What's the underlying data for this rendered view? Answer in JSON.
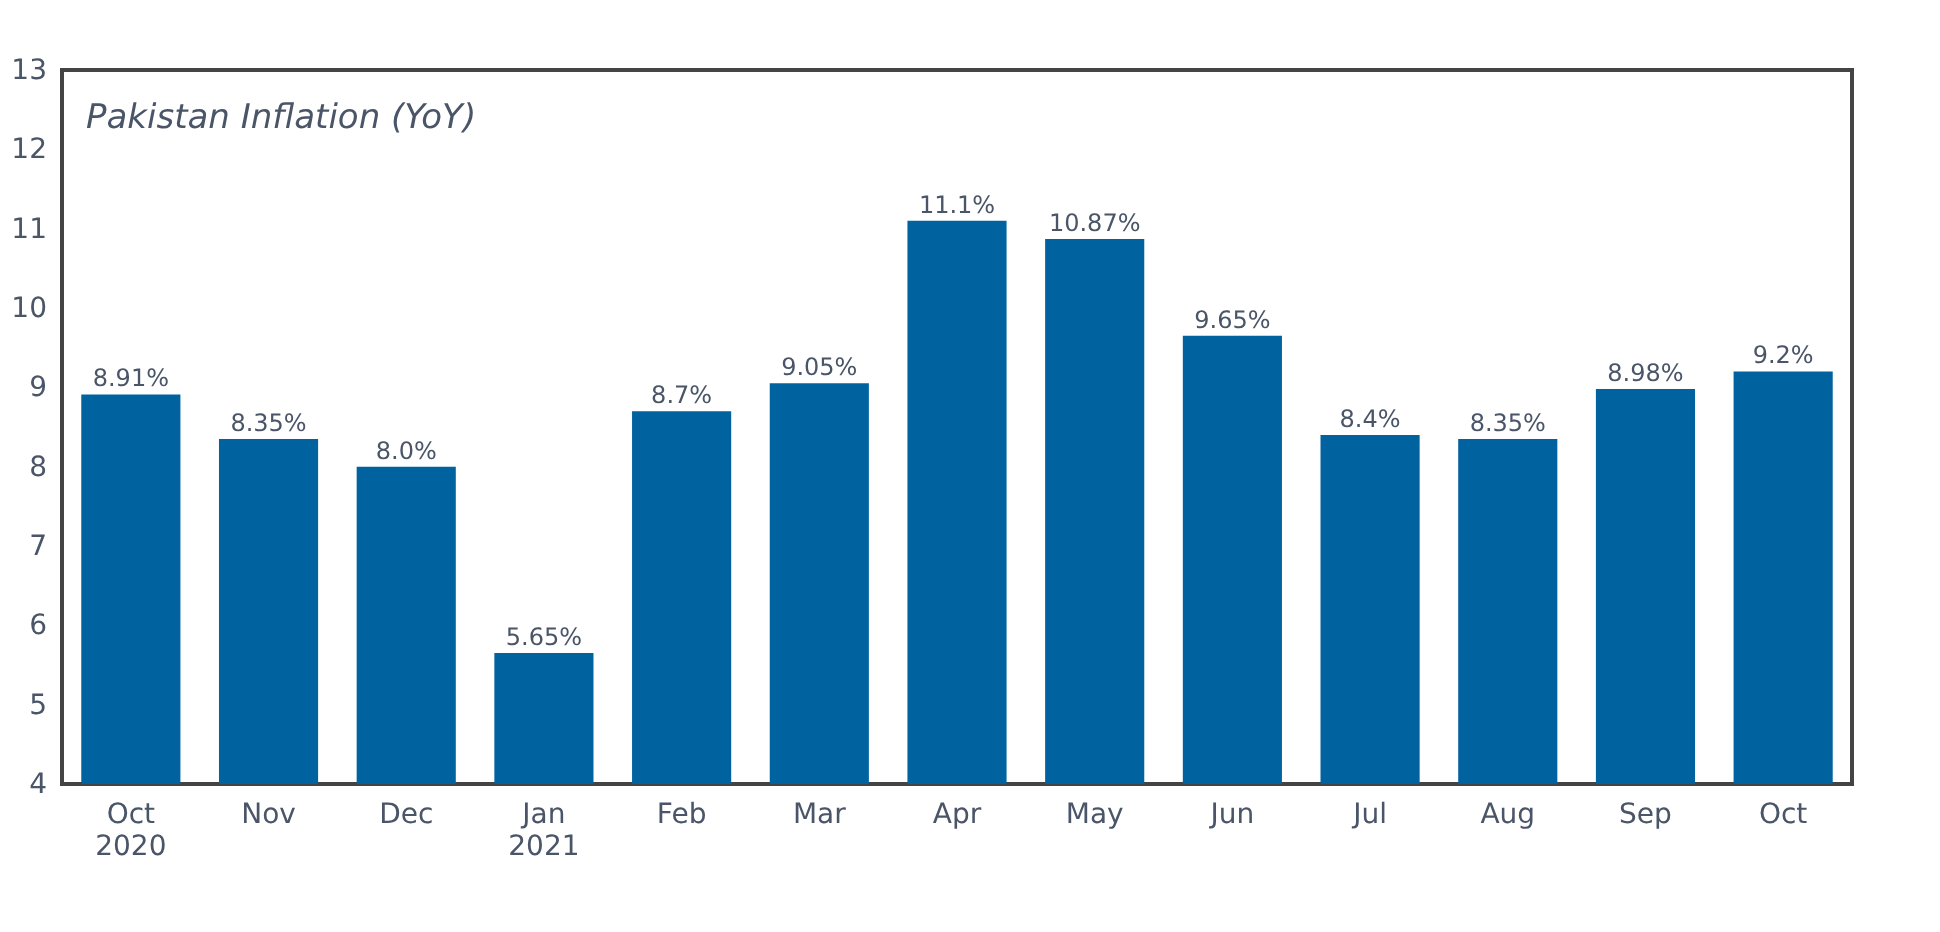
{
  "chart_data": {
    "type": "bar",
    "title": "Pakistan Inflation (YoY)",
    "categories": [
      "Oct 2020",
      "Nov",
      "Dec",
      "Jan 2021",
      "Feb",
      "Mar",
      "Apr",
      "May",
      "Jun",
      "Jul",
      "Aug",
      "Sep",
      "Oct"
    ],
    "values": [
      8.91,
      8.35,
      8.0,
      5.65,
      8.7,
      9.05,
      11.1,
      10.87,
      9.65,
      8.4,
      8.35,
      8.98,
      9.2
    ],
    "value_labels": [
      "8.91%",
      "8.35%",
      "8.0%",
      "5.65%",
      "8.7%",
      "9.05%",
      "11.1%",
      "10.87%",
      "9.65%",
      "8.4%",
      "8.35%",
      "8.98%",
      "9.2%"
    ],
    "color": "#0063a0",
    "ylim": [
      4,
      13
    ],
    "yticks": [
      4,
      5,
      6,
      7,
      8,
      9,
      10,
      11,
      12,
      13
    ],
    "grid": false
  }
}
